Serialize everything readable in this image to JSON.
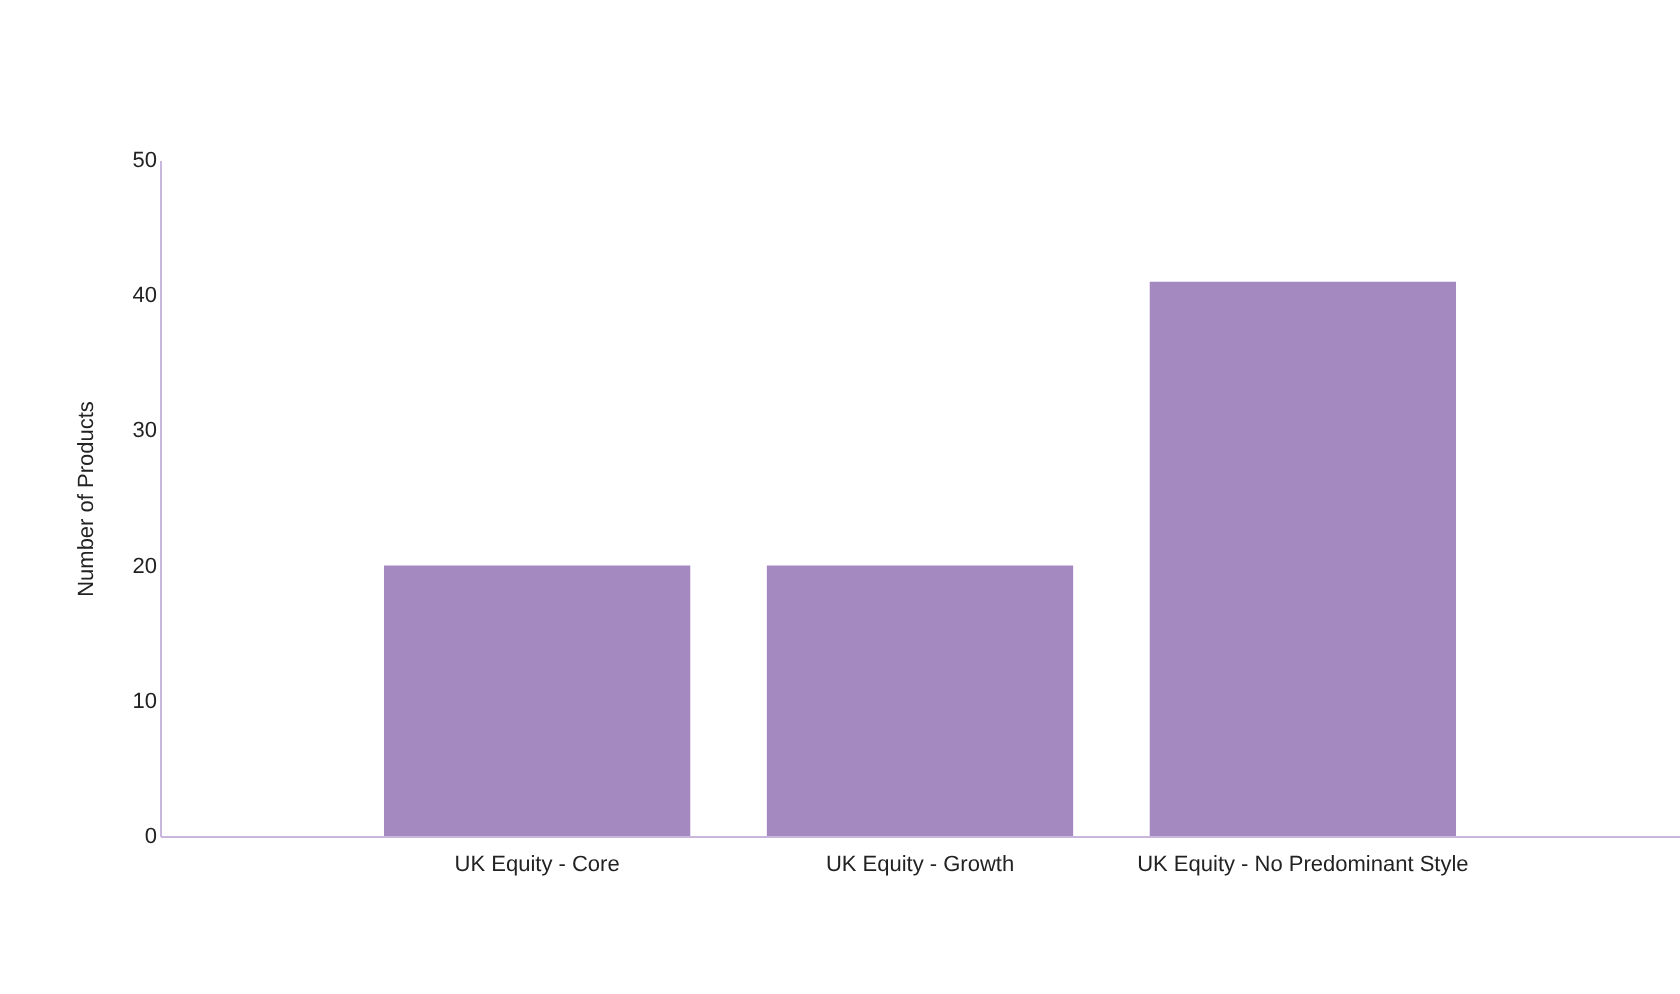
{
  "chart_data": {
    "type": "bar",
    "ylabel": "Number of Products",
    "categories": [
      "UK Equity - Core",
      "UK Equity - Growth",
      "UK Equity - No Predominant Style"
    ],
    "values": [
      20,
      20,
      41
    ],
    "color": "#a389c0",
    "ylim": [
      0,
      50
    ],
    "yticks": [
      0,
      10,
      20,
      30,
      40,
      50
    ],
    "grid": false
  }
}
